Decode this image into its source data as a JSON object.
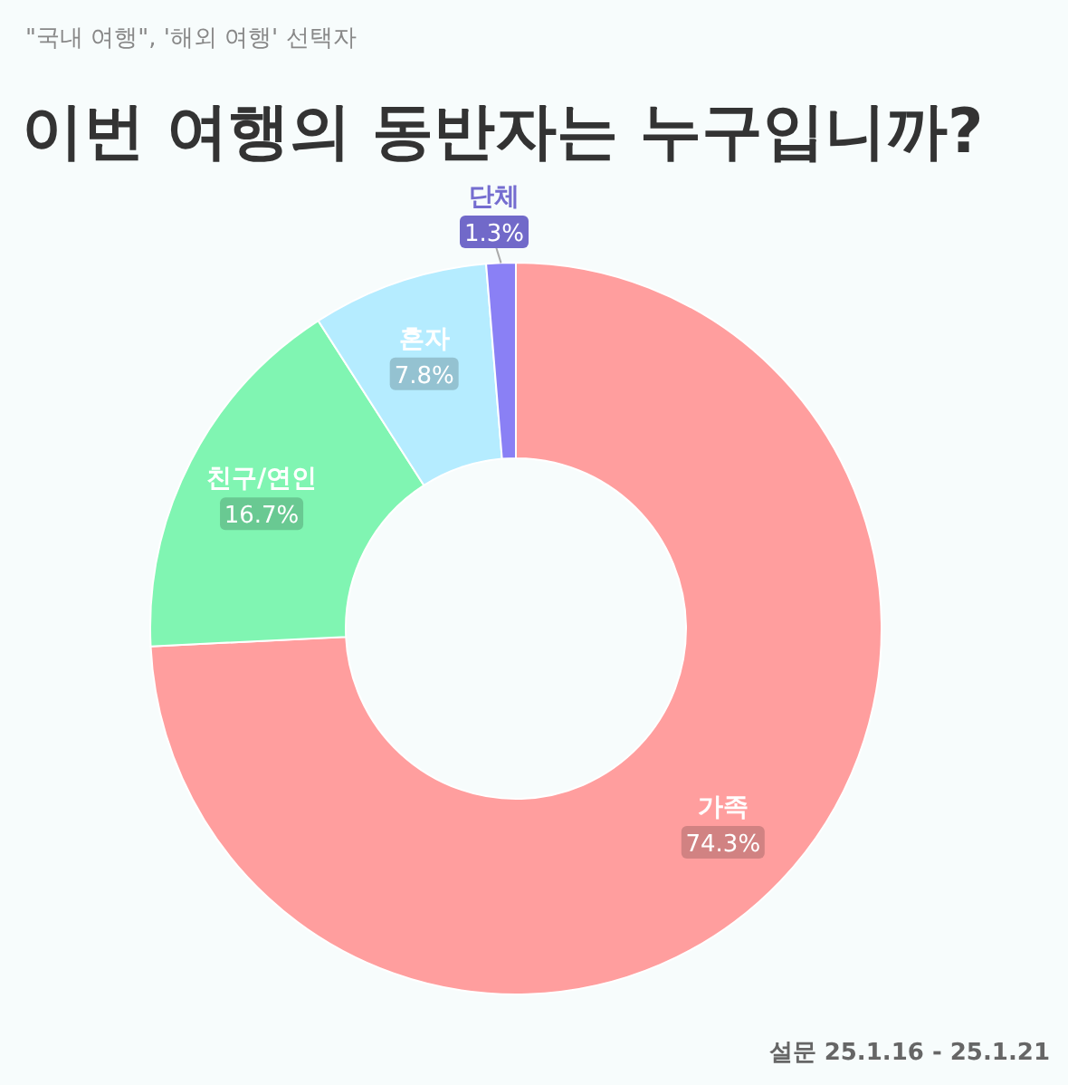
{
  "chart_data": {
    "type": "donut",
    "subtitle": "\"국내 여행\", '해외 여행' 선택자",
    "title": "이번 여행의 동반자는 누구입니까?",
    "categories": [
      "가족",
      "친구/연인",
      "혼자",
      "단체"
    ],
    "values": [
      74.3,
      16.7,
      7.8,
      1.3
    ],
    "colors": [
      "#ff9e9e",
      "#80f5b2",
      "#b5ecff",
      "#8a80f5"
    ],
    "value_labels": [
      "74.3%",
      "16.7%",
      "7.8%",
      "1.3%"
    ],
    "annotations": [
      "설문 25.1.16 - 25.1.21"
    ]
  }
}
